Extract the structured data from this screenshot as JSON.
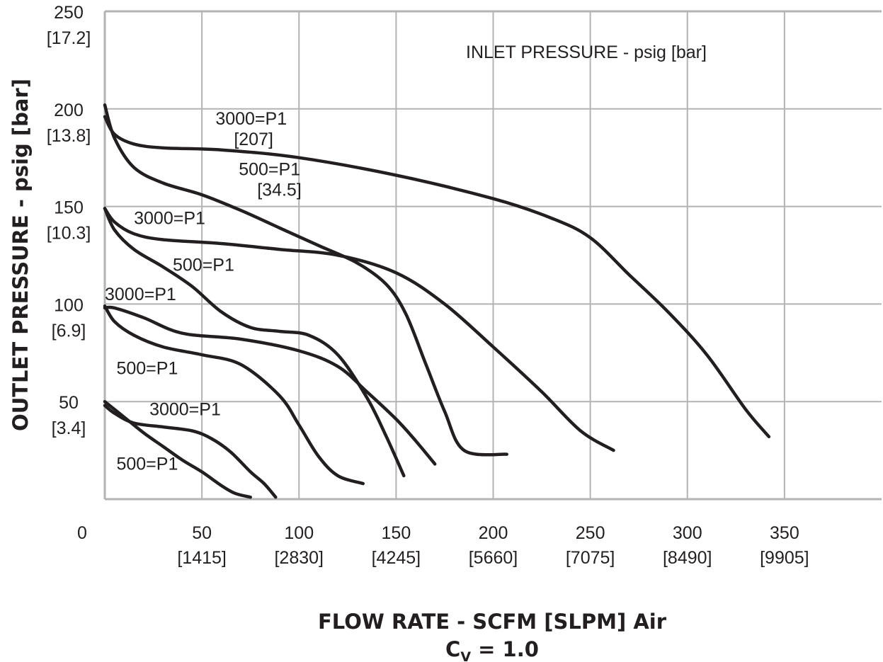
{
  "chart_data": {
    "type": "line",
    "annotation": "INLET PRESSURE - psig [bar]",
    "xlabel": "FLOW RATE - SCFM [SLPM] Air",
    "xlabel_sub": "C",
    "xlabel_sub_v": "V",
    "xlabel_sub_rest": " = 1.0",
    "ylabel": "OUTLET PRESSURE - psig [bar]",
    "xlim": [
      0,
      400
    ],
    "ylim": [
      0,
      250
    ],
    "grid": true,
    "x_ticks": [
      {
        "value": 0,
        "label": "0",
        "sub": ""
      },
      {
        "value": 50,
        "label": "50",
        "sub": "[1415]"
      },
      {
        "value": 100,
        "label": "100",
        "sub": "[2830]"
      },
      {
        "value": 150,
        "label": "150",
        "sub": "[4245]"
      },
      {
        "value": 200,
        "label": "200",
        "sub": "[5660]"
      },
      {
        "value": 250,
        "label": "250",
        "sub": "[7075]"
      },
      {
        "value": 300,
        "label": "300",
        "sub": "[8490]"
      },
      {
        "value": 350,
        "label": "350",
        "sub": "[9905]"
      }
    ],
    "y_ticks": [
      {
        "value": 250,
        "label": "250",
        "sub": "[17.2]"
      },
      {
        "value": 200,
        "label": "200",
        "sub": "[13.8]"
      },
      {
        "value": 150,
        "label": "150",
        "sub": "[10.3]"
      },
      {
        "value": 100,
        "label": "100",
        "sub": "[6.9]"
      },
      {
        "value": 50,
        "label": "50",
        "sub": "[3.4]"
      }
    ],
    "series": [
      {
        "name": "3000=P1 [207]",
        "label_lines": [
          "3000=P1",
          "[207]"
        ],
        "label_at": [
          57,
          192
        ],
        "points": [
          [
            0,
            196
          ],
          [
            5,
            187
          ],
          [
            15,
            182
          ],
          [
            30,
            180
          ],
          [
            60,
            179
          ],
          [
            100,
            175
          ],
          [
            150,
            166
          ],
          [
            200,
            154
          ],
          [
            230,
            144
          ],
          [
            250,
            134
          ],
          [
            270,
            115
          ],
          [
            290,
            96
          ],
          [
            310,
            74
          ],
          [
            330,
            46
          ],
          [
            342,
            32
          ]
        ]
      },
      {
        "name": "500=P1 [34.5]",
        "label_lines": [
          "500=P1",
          "[34.5]"
        ],
        "label_at": [
          69,
          166
        ],
        "points": [
          [
            0,
            202
          ],
          [
            5,
            185
          ],
          [
            15,
            170
          ],
          [
            30,
            162
          ],
          [
            50,
            156
          ],
          [
            70,
            148
          ],
          [
            90,
            139
          ],
          [
            110,
            130
          ],
          [
            130,
            121
          ],
          [
            145,
            110
          ],
          [
            155,
            95
          ],
          [
            165,
            70
          ],
          [
            175,
            45
          ],
          [
            185,
            25
          ],
          [
            207,
            23
          ]
        ]
      },
      {
        "name": "3000=P1",
        "label_lines": [
          "3000=P1"
        ],
        "label_at": [
          15,
          141
        ],
        "points": [
          [
            0,
            149
          ],
          [
            5,
            142
          ],
          [
            15,
            136
          ],
          [
            30,
            133
          ],
          [
            60,
            131
          ],
          [
            90,
            128
          ],
          [
            120,
            125
          ],
          [
            150,
            116
          ],
          [
            175,
            100
          ],
          [
            200,
            78
          ],
          [
            225,
            55
          ],
          [
            245,
            35
          ],
          [
            262,
            25
          ]
        ]
      },
      {
        "name": "500=P1",
        "label_lines": [
          "500=P1"
        ],
        "label_at": [
          35,
          117
        ],
        "points": [
          [
            0,
            149
          ],
          [
            5,
            138
          ],
          [
            15,
            128
          ],
          [
            30,
            119
          ],
          [
            45,
            109
          ],
          [
            60,
            96
          ],
          [
            75,
            88
          ],
          [
            90,
            86
          ],
          [
            105,
            84
          ],
          [
            120,
            74
          ],
          [
            135,
            52
          ],
          [
            145,
            32
          ],
          [
            154,
            12
          ]
        ]
      },
      {
        "name": "3000=P1",
        "label_lines": [
          "3000=P1"
        ],
        "label_at": [
          0,
          102
        ],
        "points": [
          [
            0,
            98
          ],
          [
            5,
            98
          ],
          [
            20,
            93
          ],
          [
            40,
            85
          ],
          [
            70,
            82
          ],
          [
            100,
            76
          ],
          [
            120,
            68
          ],
          [
            135,
            55
          ],
          [
            150,
            41
          ],
          [
            160,
            30
          ],
          [
            170,
            18
          ]
        ]
      },
      {
        "name": "500=P1",
        "label_lines": [
          "500=P1"
        ],
        "label_at": [
          6,
          64
        ],
        "points": [
          [
            0,
            99
          ],
          [
            5,
            91
          ],
          [
            15,
            84
          ],
          [
            30,
            78
          ],
          [
            50,
            74
          ],
          [
            70,
            69
          ],
          [
            90,
            53
          ],
          [
            100,
            38
          ],
          [
            110,
            22
          ],
          [
            120,
            12
          ],
          [
            133,
            8
          ]
        ]
      },
      {
        "name": "3000=P1",
        "label_lines": [
          "3000=P1"
        ],
        "label_at": [
          23,
          43
        ],
        "points": [
          [
            0,
            48
          ],
          [
            5,
            44
          ],
          [
            15,
            39
          ],
          [
            30,
            37
          ],
          [
            45,
            35
          ],
          [
            55,
            31
          ],
          [
            65,
            24
          ],
          [
            75,
            14
          ],
          [
            82,
            8
          ],
          [
            88,
            1
          ]
        ]
      },
      {
        "name": "500=P1",
        "label_lines": [
          "500=P1"
        ],
        "label_at": [
          6,
          15
        ],
        "points": [
          [
            0,
            50
          ],
          [
            10,
            42
          ],
          [
            20,
            34
          ],
          [
            30,
            27
          ],
          [
            40,
            20
          ],
          [
            50,
            14
          ],
          [
            60,
            7
          ],
          [
            67,
            3
          ],
          [
            75,
            1
          ]
        ]
      }
    ]
  }
}
